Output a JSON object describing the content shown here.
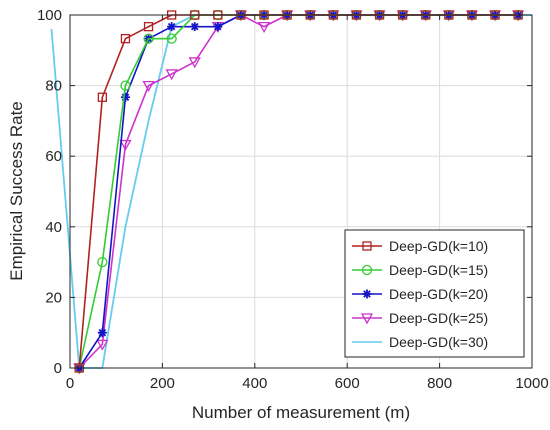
{
  "chart_data": {
    "type": "line",
    "title": "",
    "xlabel": "Number of measurement (m)",
    "ylabel": "Empirical Success Rate",
    "xlim": [
      0,
      1000
    ],
    "ylim": [
      0,
      100
    ],
    "xticks": [
      0,
      200,
      400,
      600,
      800,
      1000
    ],
    "yticks": [
      0,
      20,
      40,
      60,
      80,
      100
    ],
    "grid": true,
    "legend_position": "bottom-right",
    "series": [
      {
        "name": "Deep-GD(k=10)",
        "color": "#b22222",
        "marker": "square",
        "x": [
          20,
          70,
          120,
          170,
          220,
          270,
          320,
          370,
          420,
          470,
          520,
          570,
          620,
          670,
          720,
          770,
          820,
          870,
          920,
          970
        ],
        "y": [
          0,
          76.7,
          93.3,
          96.7,
          100,
          100,
          100,
          100,
          100,
          100,
          100,
          100,
          100,
          100,
          100,
          100,
          100,
          100,
          100,
          100
        ]
      },
      {
        "name": "Deep-GD(k=15)",
        "color": "#33cc33",
        "marker": "circle",
        "x": [
          20,
          70,
          120,
          170,
          220,
          270,
          320,
          370,
          420,
          470,
          520,
          570,
          620,
          670,
          720,
          770,
          820,
          870,
          920,
          970
        ],
        "y": [
          0,
          30,
          80,
          93.3,
          93.3,
          100,
          100,
          100,
          100,
          100,
          100,
          100,
          100,
          100,
          100,
          100,
          100,
          100,
          100,
          100
        ]
      },
      {
        "name": "Deep-GD(k=20)",
        "color": "#1414c8",
        "marker": "star",
        "x": [
          20,
          70,
          120,
          170,
          220,
          270,
          320,
          370,
          420,
          470,
          520,
          570,
          620,
          670,
          720,
          770,
          820,
          870,
          920,
          970
        ],
        "y": [
          0,
          10,
          76.7,
          93.3,
          96.7,
          96.7,
          96.7,
          100,
          100,
          100,
          100,
          100,
          100,
          100,
          100,
          100,
          100,
          100,
          100,
          100
        ]
      },
      {
        "name": "Deep-GD(k=25)",
        "color": "#cc33cc",
        "marker": "triangle-down",
        "x": [
          20,
          70,
          120,
          170,
          220,
          270,
          320,
          370,
          420,
          470,
          520,
          570,
          620,
          670,
          720,
          770,
          820,
          870,
          920,
          970
        ],
        "y": [
          0,
          6.7,
          63.3,
          80,
          83.3,
          86.7,
          96.7,
          100,
          96.7,
          100,
          100,
          100,
          100,
          100,
          100,
          100,
          100,
          100,
          100,
          100
        ]
      },
      {
        "name": "Deep-GD(k=30)",
        "color": "#66ccee",
        "marker": "none",
        "x": [
          -40,
          20,
          70,
          120,
          170,
          220,
          270,
          320,
          370,
          420,
          470,
          520,
          570,
          620,
          670,
          720,
          770,
          820,
          870,
          920,
          970,
          1000
        ],
        "y": [
          96,
          0,
          0,
          40,
          70,
          96.7,
          100,
          100,
          100,
          100,
          100,
          100,
          100,
          100,
          100,
          100,
          100,
          100,
          100,
          100,
          100,
          100
        ]
      }
    ]
  }
}
